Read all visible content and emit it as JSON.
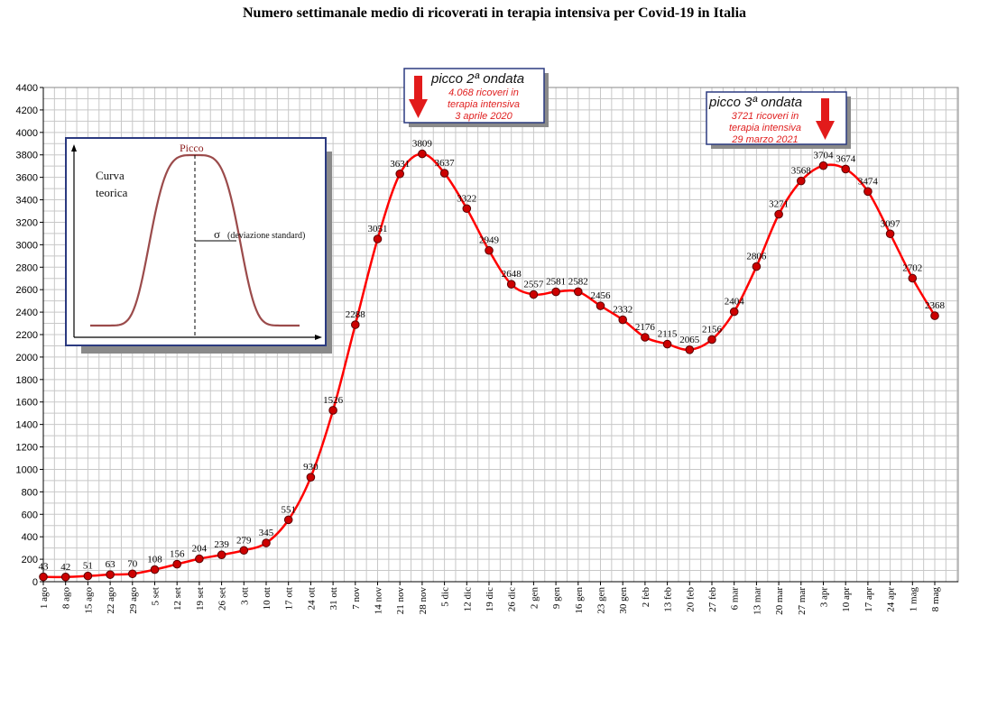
{
  "chart_data": {
    "type": "line",
    "title": "Numero settimanale medio di ricoverati in terapia intensiva per Covid-19 in Italia",
    "categories": [
      "1 ago",
      "8 ago",
      "15 ago",
      "22 ago",
      "29 ago",
      "5 set",
      "12 set",
      "19 set",
      "26 set",
      "3 ott",
      "10 ott",
      "17 ott",
      "24 ott",
      "31 ott",
      "7 nov",
      "14 nov",
      "21 nov",
      "28 nov",
      "5 dic",
      "12 dic",
      "19 dic",
      "26 dic",
      "2 gen",
      "9 gen",
      "16 gen",
      "23 gen",
      "30 gen",
      "2 feb",
      "13 feb",
      "20 feb",
      "27 feb",
      "6 mar",
      "13 mar",
      "20 mar",
      "27 mar",
      "3 apr",
      "10 apr",
      "17 apr",
      "24 apr",
      "1 mag",
      "8 mag"
    ],
    "values": [
      43,
      42,
      51,
      63,
      70,
      108,
      156,
      204,
      239,
      279,
      345,
      551,
      930,
      1526,
      2288,
      3051,
      3631,
      3809,
      3637,
      3322,
      2949,
      2648,
      2557,
      2581,
      2582,
      2456,
      2332,
      2176,
      2115,
      2065,
      2156,
      2404,
      2806,
      3271,
      3568,
      3704,
      3674,
      3474,
      3097,
      2702,
      2368
    ],
    "data_labels": [
      "43",
      "42",
      "51",
      "63",
      "70",
      "108",
      "156",
      "204",
      "239",
      "279",
      "345",
      "551",
      "930",
      "1526",
      "2288",
      "3051",
      "3631",
      "3809",
      "3637",
      "3322",
      "2949",
      "2648",
      "2557",
      "2581",
      "2582",
      "2456",
      "2332",
      "2176",
      "2115",
      "2065",
      "2156",
      "2404",
      "2806",
      "3271",
      "3568",
      "3704",
      "3674",
      "3474",
      "3097",
      "2702",
      "2368"
    ],
    "ylim": [
      0,
      4400
    ],
    "yticks": [
      "0",
      "200",
      "400",
      "600",
      "800",
      "1000",
      "1200",
      "1400",
      "1600",
      "1800",
      "2000",
      "2200",
      "2400",
      "2600",
      "2800",
      "3000",
      "3200",
      "3400",
      "3600",
      "3800",
      "4000",
      "4200",
      "4400"
    ],
    "grid": true,
    "series_color": "#ff0000",
    "marker_color": "#cc0000"
  },
  "callouts": [
    {
      "title": "picco 2ª ondata",
      "lines": [
        "4.068 ricoveri in",
        "terapia intensiva",
        "3 aprile 2020"
      ],
      "arrow_category": "28 nov"
    },
    {
      "title": "picco 3ª ondata",
      "lines": [
        "3721 ricoveri in",
        "terapia intensiva",
        "29 marzo 2021"
      ],
      "arrow_category": "3 apr"
    }
  ],
  "inset": {
    "peak_label": "Picco",
    "curve_label_line1": "Curva",
    "curve_label_line2": "teorica",
    "sigma_label": "σ",
    "sigma_note": "(deviazione standard)"
  },
  "colors": {
    "accent": "#ff0000",
    "arrow": "#e21b1b",
    "box_border": "#2b3a80",
    "grid": "#c8c8c8"
  }
}
